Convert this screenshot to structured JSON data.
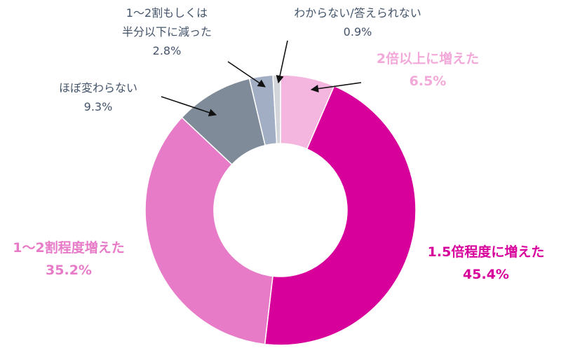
{
  "chart_data": {
    "type": "pie",
    "variant": "donut",
    "start": "top",
    "direction": "clockwise",
    "slices": [
      {
        "label": "2倍以上に増えた",
        "value": 6.5,
        "value_label": "6.5%",
        "color": "#F4B5DE"
      },
      {
        "label": "1.5倍程度に増えた",
        "value": 45.4,
        "value_label": "45.4%",
        "color": "#D8009B"
      },
      {
        "label": "1～2割程度増えた",
        "value": 35.2,
        "value_label": "35.2%",
        "color": "#E77BC7"
      },
      {
        "label": "ほぼ変わらない",
        "value": 9.3,
        "value_label": "9.3%",
        "color": "#7F8B98"
      },
      {
        "label_lines": [
          "1～2割もしくは",
          "半分以下に減った"
        ],
        "value": 2.8,
        "value_label": "2.8%",
        "color": "#A1AEC4"
      },
      {
        "label": "わからない/答えられない",
        "value": 0.9,
        "value_label": "0.9%",
        "color": "#D2D5DA"
      }
    ]
  }
}
